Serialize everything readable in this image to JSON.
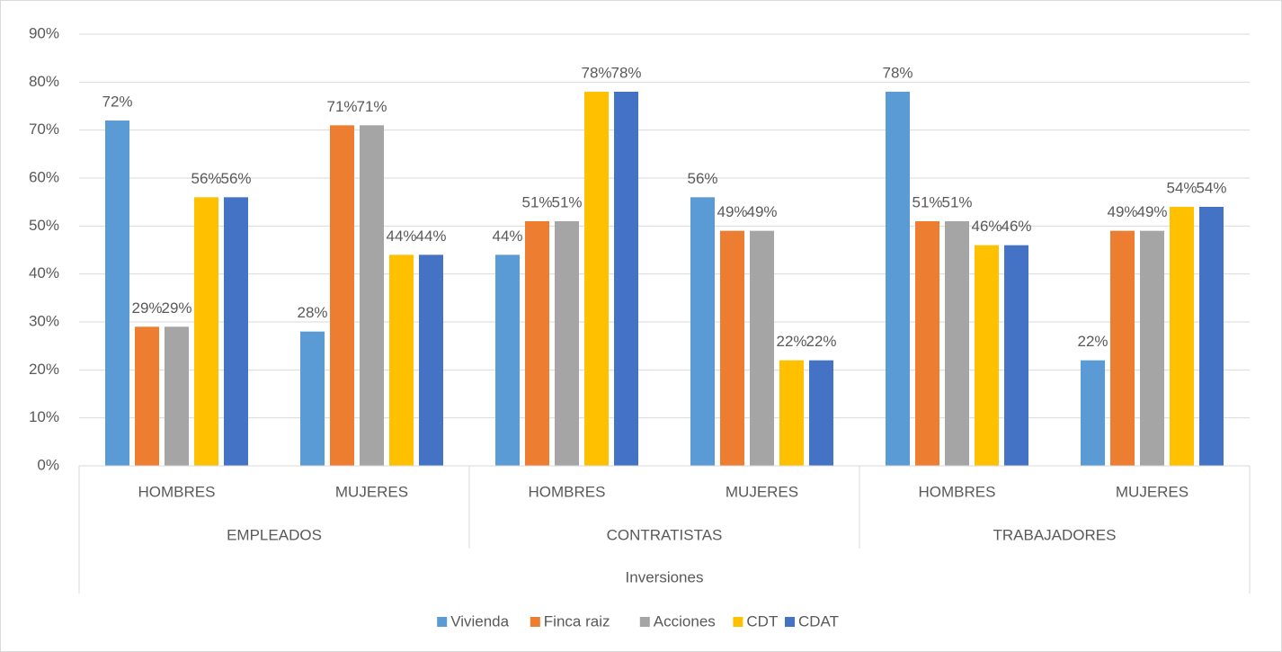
{
  "chart_data": {
    "type": "bar",
    "x_label": "Inversiones",
    "groups": [
      {
        "name": "EMPLEADOS",
        "categories": [
          "HOMBRES",
          "MUJERES"
        ]
      },
      {
        "name": "CONTRATISTAS",
        "categories": [
          "HOMBRES",
          "MUJERES"
        ]
      },
      {
        "name": "TRABAJADORES",
        "categories": [
          "HOMBRES",
          "MUJERES"
        ]
      }
    ],
    "series": [
      {
        "name": "Vivienda",
        "color": "#5b9bd5",
        "values": [
          72,
          28,
          44,
          56,
          78,
          22
        ],
        "value_labels": [
          "72%",
          "28%",
          "44%",
          "56%",
          "78%",
          "22%"
        ]
      },
      {
        "name": "Finca raiz",
        "color": "#ed7d31",
        "values": [
          29,
          71,
          51,
          49,
          51,
          49
        ],
        "value_labels": [
          "29%",
          "71%",
          "51%",
          "49%",
          "51%",
          "49%"
        ]
      },
      {
        "name": "Acciones",
        "color": "#a5a5a5",
        "values": [
          29,
          71,
          51,
          49,
          51,
          49
        ],
        "value_labels": [
          "29%",
          "71%",
          "51%",
          "49%",
          "51%",
          "49%"
        ]
      },
      {
        "name": "CDT",
        "color": "#ffc000",
        "values": [
          56,
          44,
          78,
          22,
          46,
          54
        ],
        "value_labels": [
          "56%",
          "44%",
          "78%",
          "22%",
          "46%",
          "54%"
        ]
      },
      {
        "name": "CDAT",
        "color": "#4472c4",
        "values": [
          56,
          44,
          78,
          22,
          46,
          54
        ],
        "value_labels": [
          "56%",
          "44%",
          "78%",
          "22%",
          "46%",
          "54%"
        ]
      }
    ],
    "ylim": [
      0,
      90
    ],
    "yticks": [
      {
        "value": 0,
        "label": "0%"
      },
      {
        "value": 10,
        "label": "10%"
      },
      {
        "value": 20,
        "label": "20%"
      },
      {
        "value": 30,
        "label": "30%"
      },
      {
        "value": 40,
        "label": "40%"
      },
      {
        "value": 50,
        "label": "50%"
      },
      {
        "value": 60,
        "label": "60%"
      },
      {
        "value": 70,
        "label": "70%"
      },
      {
        "value": 80,
        "label": "80%"
      },
      {
        "value": 90,
        "label": "90%"
      }
    ],
    "grid": true,
    "legend": "bottom"
  }
}
